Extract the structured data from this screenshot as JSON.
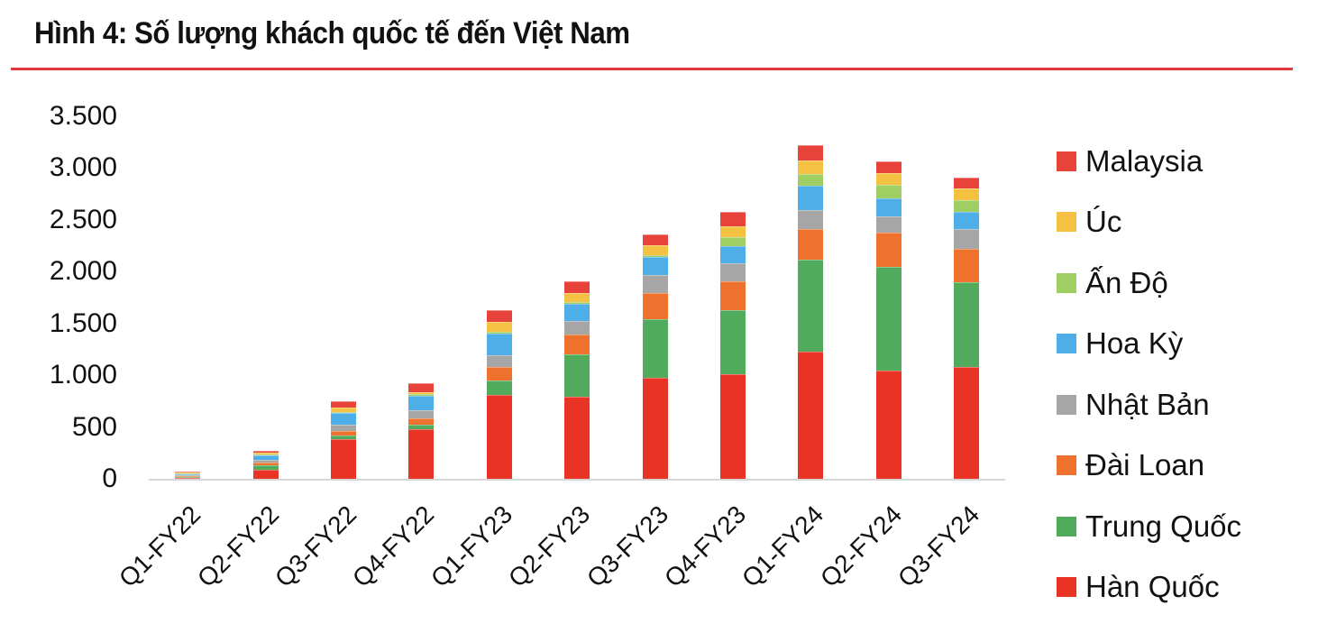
{
  "title": "Hình 4: Số lượng khách quốc tế đến Việt Nam",
  "colors": {
    "title_rule": "#e0393b",
    "axis": "#d6d6d6"
  },
  "y_axis": {
    "ticks": [
      "3.500",
      "3.000",
      "2.500",
      "2.000",
      "1.500",
      "1.000",
      "500",
      "0"
    ]
  },
  "legend": [
    {
      "label": "Malaysia",
      "color": "#e8433a"
    },
    {
      "label": "Úc",
      "color": "#f5c142"
    },
    {
      "label": "Ấn Độ",
      "color": "#9fcf63"
    },
    {
      "label": "Hoa Kỳ",
      "color": "#4eaee8"
    },
    {
      "label": "Nhật Bản",
      "color": "#a6a6a6"
    },
    {
      "label": "Đài Loan",
      "color": "#ee722d"
    },
    {
      "label": "Trung Quốc",
      "color": "#50ac5c"
    },
    {
      "label": "Hàn Quốc",
      "color": "#e83325"
    }
  ],
  "chart_data": {
    "type": "bar",
    "stacked": true,
    "title": "Hình 4: Số lượng khách quốc tế đến Việt Nam",
    "xlabel": "",
    "ylabel": "",
    "ylim": [
      0,
      3500
    ],
    "yticks": [
      0,
      500,
      1000,
      1500,
      2000,
      2500,
      3000,
      3500
    ],
    "grid": false,
    "legend_position": "right",
    "categories": [
      "Q1-FY22",
      "Q2-FY22",
      "Q3-FY22",
      "Q4-FY22",
      "Q1-FY23",
      "Q2-FY23",
      "Q3-FY23",
      "Q4-FY23",
      "Q1-FY24",
      "Q2-FY24",
      "Q3-FY24"
    ],
    "series": [
      {
        "name": "Hàn Quốc",
        "color": "#e83325",
        "values": [
          8,
          85,
          385,
          480,
          810,
          795,
          975,
          1010,
          1230,
          1045,
          1080
        ]
      },
      {
        "name": "Trung Quốc",
        "color": "#50ac5c",
        "values": [
          12,
          50,
          35,
          45,
          140,
          410,
          565,
          620,
          890,
          1000,
          820
        ]
      },
      {
        "name": "Đài Loan",
        "color": "#ee722d",
        "values": [
          5,
          25,
          45,
          60,
          130,
          190,
          250,
          280,
          295,
          330,
          320
        ]
      },
      {
        "name": "Nhật Bản",
        "color": "#a6a6a6",
        "values": [
          6,
          25,
          60,
          80,
          115,
          130,
          175,
          175,
          180,
          155,
          190
        ]
      },
      {
        "name": "Hoa Kỳ",
        "color": "#4eaee8",
        "values": [
          8,
          45,
          110,
          140,
          210,
          165,
          175,
          165,
          235,
          175,
          165
        ]
      },
      {
        "name": "Ấn Độ",
        "color": "#9fcf63",
        "values": [
          1,
          3,
          5,
          10,
          15,
          15,
          20,
          80,
          115,
          130,
          115
        ]
      },
      {
        "name": "Úc",
        "color": "#f5c142",
        "values": [
          2,
          17,
          45,
          25,
          95,
          85,
          95,
          105,
          130,
          115,
          115
        ]
      },
      {
        "name": "Malaysia",
        "color": "#e8433a",
        "values": [
          3,
          20,
          60,
          85,
          115,
          115,
          105,
          140,
          150,
          115,
          105
        ]
      }
    ]
  }
}
